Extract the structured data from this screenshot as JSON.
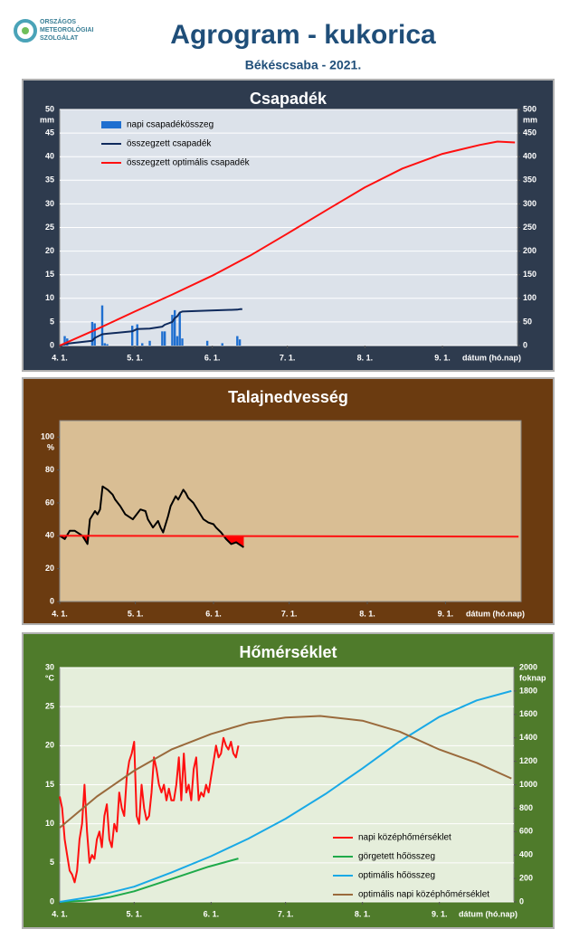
{
  "header": {
    "logo_lines": [
      "ORSZÁGOS",
      "METEOROLÓGIAI",
      "SZOLGÁLAT"
    ],
    "title": "Agrogram - kukorica",
    "subtitle": "Békéscsaba - 2021."
  },
  "chart_data": [
    {
      "type": "combo",
      "title": "Csapadék",
      "y_unit": "mm",
      "y2_unit": "mm",
      "xlabel": "dátum (hó.nap)",
      "xlim": [
        0,
        183
      ],
      "xticks": [
        {
          "value": 0,
          "label": "4. 1."
        },
        {
          "value": 30,
          "label": "5. 1."
        },
        {
          "value": 61,
          "label": "6. 1."
        },
        {
          "value": 91,
          "label": "7. 1."
        },
        {
          "value": 122,
          "label": "8. 1."
        },
        {
          "value": 153,
          "label": "9. 1."
        }
      ],
      "ylim": [
        0,
        50
      ],
      "yticks": [
        0,
        5,
        10,
        15,
        20,
        25,
        30,
        35,
        40,
        45,
        50
      ],
      "y2lim": [
        0,
        500
      ],
      "y2ticks": [
        0,
        50,
        100,
        150,
        200,
        250,
        300,
        350,
        400,
        450,
        500
      ],
      "grid": true,
      "legend": "top-left",
      "series": [
        {
          "name": "napi csapadékösszeg",
          "kind": "bar",
          "color": "#1f6fd0",
          "x": [
            2,
            3,
            13,
            14,
            17,
            18,
            19,
            29,
            31,
            33,
            36,
            41,
            42,
            45,
            46,
            47,
            48,
            49,
            59,
            65,
            71,
            72
          ],
          "values": [
            2,
            1.5,
            5,
            4.7,
            8.5,
            0.5,
            0.3,
            4.2,
            4.5,
            0.5,
            1,
            3,
            3,
            6.5,
            7.5,
            2,
            7,
            1.5,
            1,
            0.5,
            2,
            1.3
          ]
        },
        {
          "name": "összegzett csapadék",
          "kind": "line",
          "axis": "y2",
          "color": "#0f2a5c",
          "x": [
            0,
            2,
            3,
            13,
            14,
            17,
            19,
            29,
            31,
            36,
            41,
            42,
            45,
            46,
            47,
            48,
            49,
            59,
            71,
            72,
            73
          ],
          "values": [
            0,
            3,
            4,
            10,
            16,
            24,
            25,
            30,
            35,
            36,
            40,
            44,
            50,
            58,
            62,
            70,
            72,
            74,
            76,
            77,
            77
          ]
        },
        {
          "name": "összegzett optimális  csapadék",
          "kind": "line",
          "axis": "y2",
          "color": "#ff1010",
          "x": [
            0,
            15,
            30,
            45,
            61,
            76,
            91,
            107,
            122,
            137,
            153,
            168,
            175,
            182
          ],
          "values": [
            0,
            35,
            72,
            108,
            148,
            190,
            237,
            288,
            335,
            375,
            406,
            425,
            432,
            430
          ]
        }
      ]
    },
    {
      "type": "line",
      "title": "Talajnedvesség",
      "y_unit": "%",
      "xlabel": "dátum (hó.nap)",
      "xlim": [
        0,
        183
      ],
      "xticks": [
        {
          "value": 0,
          "label": "4. 1."
        },
        {
          "value": 30,
          "label": "5. 1."
        },
        {
          "value": 61,
          "label": "6. 1."
        },
        {
          "value": 91,
          "label": "7. 1."
        },
        {
          "value": 122,
          "label": "8. 1."
        },
        {
          "value": 153,
          "label": "9. 1."
        }
      ],
      "ylim": [
        0,
        110
      ],
      "yticks": [
        0,
        20,
        40,
        60,
        80,
        100
      ],
      "grid": false,
      "deficit_color": "#ff0000",
      "series": [
        {
          "kind": "line",
          "color": "#000000",
          "x": [
            0,
            2,
            4,
            6,
            9,
            11,
            12,
            14,
            15,
            16,
            17,
            19,
            21,
            22,
            24,
            26,
            29,
            30,
            32,
            34,
            35,
            37,
            39,
            40,
            41,
            43,
            44,
            46,
            47,
            49,
            50,
            51,
            53,
            55,
            57,
            59,
            61,
            62,
            64,
            66,
            68,
            70,
            71,
            73
          ],
          "values": [
            40,
            38,
            43,
            43,
            40,
            35,
            50,
            55,
            53,
            56,
            70,
            68,
            65,
            62,
            58,
            53,
            50,
            52,
            56,
            55,
            50,
            45,
            49,
            45,
            42,
            52,
            58,
            64,
            62,
            68,
            66,
            63,
            60,
            55,
            50,
            48,
            47,
            45,
            42,
            38,
            35,
            36,
            35,
            33
          ]
        },
        {
          "kind": "line",
          "color": "#ff1010",
          "x": [
            0,
            182
          ],
          "values": [
            40,
            39.5
          ]
        }
      ]
    },
    {
      "type": "line",
      "title": "Hőmérséklet",
      "y_unit": "°C",
      "y2_unit": "foknap",
      "xlabel": "dátum (hó.nap)",
      "xlim": [
        0,
        183
      ],
      "xticks": [
        {
          "value": 0,
          "label": "4. 1."
        },
        {
          "value": 30,
          "label": "5. 1."
        },
        {
          "value": 61,
          "label": "6. 1."
        },
        {
          "value": 91,
          "label": "7. 1."
        },
        {
          "value": 122,
          "label": "8. 1."
        },
        {
          "value": 153,
          "label": "9. 1."
        }
      ],
      "ylim": [
        0,
        30
      ],
      "yticks": [
        0,
        5,
        10,
        15,
        20,
        25,
        30
      ],
      "y2lim": [
        0,
        2000
      ],
      "y2ticks": [
        0,
        200,
        400,
        600,
        800,
        1000,
        1200,
        1400,
        1600,
        1800,
        2000
      ],
      "grid": true,
      "legend": "bottom-right",
      "series": [
        {
          "name": "napi középhőmérséklet",
          "kind": "line",
          "color": "#ff1010",
          "x": [
            0,
            1,
            2,
            3,
            4,
            5,
            6,
            7,
            8,
            9,
            10,
            11,
            12,
            13,
            14,
            15,
            16,
            17,
            18,
            19,
            20,
            21,
            22,
            23,
            24,
            25,
            26,
            27,
            28,
            29,
            30,
            31,
            32,
            33,
            34,
            35,
            36,
            37,
            38,
            39,
            40,
            41,
            42,
            43,
            44,
            45,
            46,
            47,
            48,
            49,
            50,
            51,
            52,
            53,
            54,
            55,
            56,
            57,
            58,
            59,
            60,
            61,
            62,
            63,
            64,
            65,
            66,
            67,
            68,
            69,
            70,
            71,
            72
          ],
          "values": [
            13.5,
            12,
            8,
            6,
            4,
            3.5,
            2.5,
            4,
            8,
            10,
            15,
            9,
            5,
            6,
            5.5,
            8,
            9,
            7,
            11,
            12.5,
            8,
            7,
            10,
            9,
            14,
            12,
            11,
            16,
            18,
            19,
            20.5,
            11,
            10,
            15,
            12,
            10.5,
            11,
            14,
            18.5,
            17,
            15,
            14,
            15,
            13,
            14.5,
            13,
            13,
            15,
            18.5,
            13,
            19,
            14,
            15,
            13,
            17,
            18.5,
            13,
            14,
            13.5,
            15,
            14,
            16,
            18,
            20,
            18.5,
            19,
            21,
            20,
            19.5,
            20.5,
            19,
            18.5,
            20
          ]
        },
        {
          "name": "görgetett hőösszeg",
          "kind": "line",
          "axis": "y2",
          "color": "#1faa4a",
          "x": [
            0,
            10,
            20,
            30,
            40,
            50,
            60,
            72
          ],
          "values": [
            0,
            10,
            40,
            90,
            160,
            230,
            300,
            370
          ]
        },
        {
          "name": "optimális hőösszeg",
          "kind": "line",
          "axis": "y2",
          "color": "#19a9e6",
          "x": [
            0,
            15,
            30,
            45,
            61,
            76,
            91,
            107,
            122,
            137,
            153,
            168,
            182
          ],
          "values": [
            0,
            50,
            130,
            250,
            390,
            540,
            710,
            920,
            1140,
            1370,
            1580,
            1720,
            1800
          ]
        },
        {
          "name": "optimális napi középhőmérséklet",
          "kind": "line",
          "color": "#9a6a3c",
          "x": [
            0,
            15,
            30,
            45,
            61,
            76,
            91,
            105,
            122,
            137,
            153,
            168,
            182
          ],
          "values": [
            9.5,
            13.5,
            16.8,
            19.5,
            21.5,
            22.9,
            23.6,
            23.8,
            23.2,
            21.8,
            19.5,
            17.8,
            15.8
          ]
        }
      ]
    }
  ]
}
